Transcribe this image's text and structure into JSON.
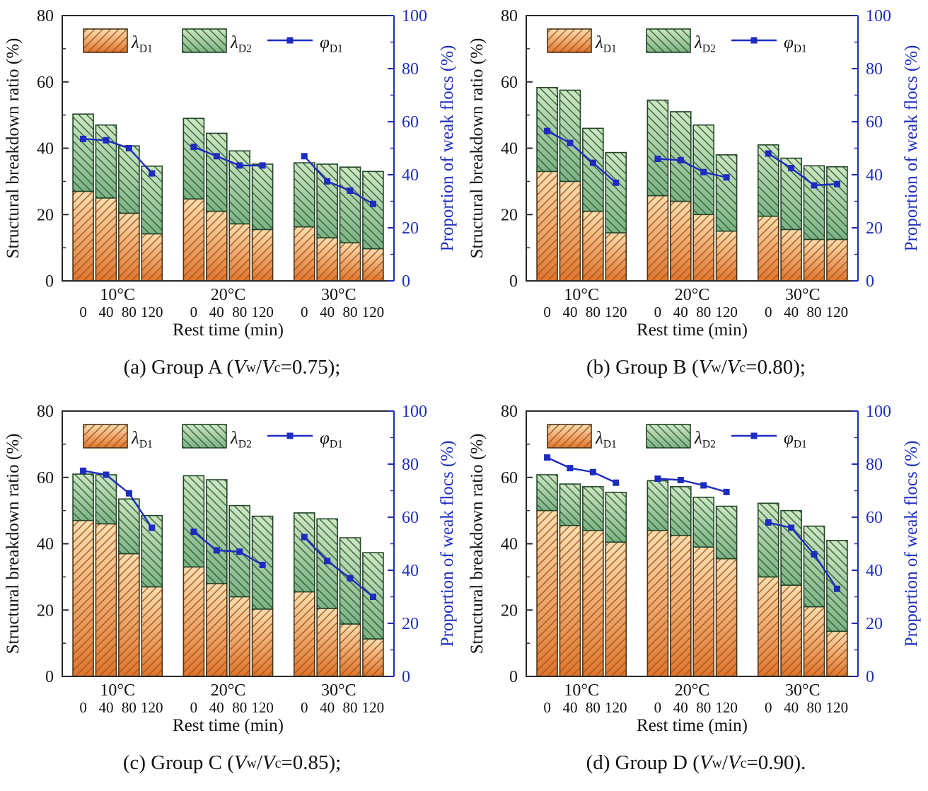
{
  "figure": {
    "panel_captions": [
      "(a) Group A (Vw/Vc=0.75);",
      "(b) Group B (Vw/Vc=0.80);",
      "(c) Group C (Vw/Vc=0.85);",
      "(d) Group D (Vw/Vc=0.90)."
    ]
  },
  "chart_data": {
    "type": "bar",
    "subtype": "stacked-bars-with-line-overlay",
    "shared": {
      "left_axis": {
        "title": "Structural breakdown ratio (%)",
        "min": 0,
        "max": 80,
        "major": 20,
        "minor": 10,
        "ticks": [
          0,
          20,
          40,
          60,
          80
        ],
        "color": "#111111"
      },
      "right_axis": {
        "title": "Proportion of weak flocs (%)",
        "min": 0,
        "max": 100,
        "major": 20,
        "minor": 10,
        "ticks": [
          0,
          20,
          40,
          60,
          80,
          100
        ],
        "color": "#1D2CBF"
      },
      "x_axis": {
        "title": "Rest time (min)",
        "temps": [
          "10°C",
          "20°C",
          "30°C"
        ],
        "rest_times": [
          "0",
          "40",
          "80",
          "120"
        ]
      },
      "legend": [
        {
          "name": "lambda-d1",
          "swatch": "orange-hatch",
          "segments": [
            {
              "text": "λ",
              "kind": "ital"
            },
            {
              "text": "D1",
              "kind": "sub"
            }
          ]
        },
        {
          "name": "lambda-d2",
          "swatch": "green-hatch",
          "segments": [
            {
              "text": "λ",
              "kind": "ital"
            },
            {
              "text": "D2",
              "kind": "sub"
            }
          ]
        },
        {
          "name": "phi-d1",
          "swatch": "blue-line",
          "segments": [
            {
              "text": "φ",
              "kind": "ital"
            },
            {
              "text": "D1",
              "kind": "sub"
            }
          ]
        }
      ],
      "legend_position": "top-inside",
      "grid": false,
      "style": {
        "orange_top": "#FCDFB2",
        "orange_bottom": "#E0752D",
        "orange_hatch": "#A3581E",
        "orange_border": "#4A3418",
        "green_top": "#CFE6C4",
        "green_bottom": "#7DB286",
        "green_hatch": "#2F6136",
        "green_border": "#234528",
        "blue": "#1D2CBF",
        "axis_black": "#2A2A2A",
        "text_black": "#111111"
      }
    },
    "panels": [
      {
        "id": "a",
        "caption_text": "(a) Group A (Vw/Vc=0.75);",
        "caption_segments": [
          {
            "text": "(a) Group A (",
            "kind": "text"
          },
          {
            "text": "V",
            "kind": "ital"
          },
          {
            "text": "w",
            "kind": "sub"
          },
          {
            "text": "/",
            "kind": "text"
          },
          {
            "text": "V",
            "kind": "ital"
          },
          {
            "text": "c",
            "kind": "sub"
          },
          {
            "text": "=0.75);",
            "kind": "text"
          }
        ],
        "lambda_d1": [
          27,
          25,
          20.4,
          14.2,
          24.7,
          21,
          17.2,
          15.5,
          16.3,
          13,
          11.5,
          9.7
        ],
        "lambda_d2": [
          23.3,
          22,
          20.3,
          20.4,
          24.3,
          23.5,
          22,
          19.7,
          19.3,
          22.2,
          22.8,
          23.3
        ],
        "phi_d1": [
          53.5,
          53,
          50,
          40.5,
          50.5,
          47,
          43.5,
          43.5,
          47,
          37.5,
          34,
          29
        ]
      },
      {
        "id": "b",
        "caption_text": "(b) Group B (Vw/Vc=0.80);",
        "caption_segments": [
          {
            "text": "(b) Group B (",
            "kind": "text"
          },
          {
            "text": "V",
            "kind": "ital"
          },
          {
            "text": "w",
            "kind": "sub"
          },
          {
            "text": "/",
            "kind": "text"
          },
          {
            "text": "V",
            "kind": "ital"
          },
          {
            "text": "c",
            "kind": "sub"
          },
          {
            "text": "=0.80);",
            "kind": "text"
          }
        ],
        "lambda_d1": [
          33,
          30,
          21,
          14.5,
          25.7,
          24,
          20,
          15,
          19.5,
          15.5,
          12.5,
          12.5
        ],
        "lambda_d2": [
          25.3,
          27.5,
          25,
          24.2,
          28.8,
          27,
          27,
          23,
          21.5,
          21.5,
          22.2,
          21.9
        ],
        "phi_d1": [
          56.5,
          52,
          44.5,
          37,
          46,
          45.5,
          41,
          39,
          48,
          42.5,
          36,
          36.5
        ]
      },
      {
        "id": "c",
        "caption_text": "(c) Group C (Vw/Vc=0.85);",
        "caption_segments": [
          {
            "text": "(c) Group C (",
            "kind": "text"
          },
          {
            "text": "V",
            "kind": "ital"
          },
          {
            "text": "w",
            "kind": "sub"
          },
          {
            "text": "/",
            "kind": "text"
          },
          {
            "text": "V",
            "kind": "ital"
          },
          {
            "text": "c",
            "kind": "sub"
          },
          {
            "text": "=0.85);",
            "kind": "text"
          }
        ],
        "lambda_d1": [
          47,
          46,
          37,
          27,
          33,
          28,
          24,
          20.3,
          25.5,
          20.5,
          15.8,
          11.3
        ],
        "lambda_d2": [
          14,
          14.8,
          16.5,
          21.5,
          27.5,
          31.3,
          27.5,
          28,
          23.8,
          27,
          26,
          26
        ],
        "phi_d1": [
          77.5,
          76,
          69,
          56,
          54.5,
          47.5,
          47,
          42,
          52.5,
          43.5,
          37,
          30
        ]
      },
      {
        "id": "d",
        "caption_text": "(d) Group D (Vw/Vc=0.90).",
        "caption_segments": [
          {
            "text": "(d) Group D (",
            "kind": "text"
          },
          {
            "text": "V",
            "kind": "ital"
          },
          {
            "text": "w",
            "kind": "sub"
          },
          {
            "text": "/",
            "kind": "text"
          },
          {
            "text": "V",
            "kind": "ital"
          },
          {
            "text": "c",
            "kind": "sub"
          },
          {
            "text": "=0.90).",
            "kind": "text"
          }
        ],
        "lambda_d1": [
          50,
          45.5,
          44,
          40.5,
          44,
          42.5,
          39,
          35.5,
          30,
          27.5,
          21,
          13.6
        ],
        "lambda_d2": [
          10.8,
          12.5,
          13.2,
          15,
          15,
          14.7,
          15,
          15.8,
          22.2,
          22.5,
          24.3,
          27.4
        ],
        "phi_d1": [
          82.5,
          78.5,
          77,
          73,
          74.5,
          74,
          72,
          69.5,
          58,
          56,
          46,
          33
        ]
      }
    ]
  }
}
